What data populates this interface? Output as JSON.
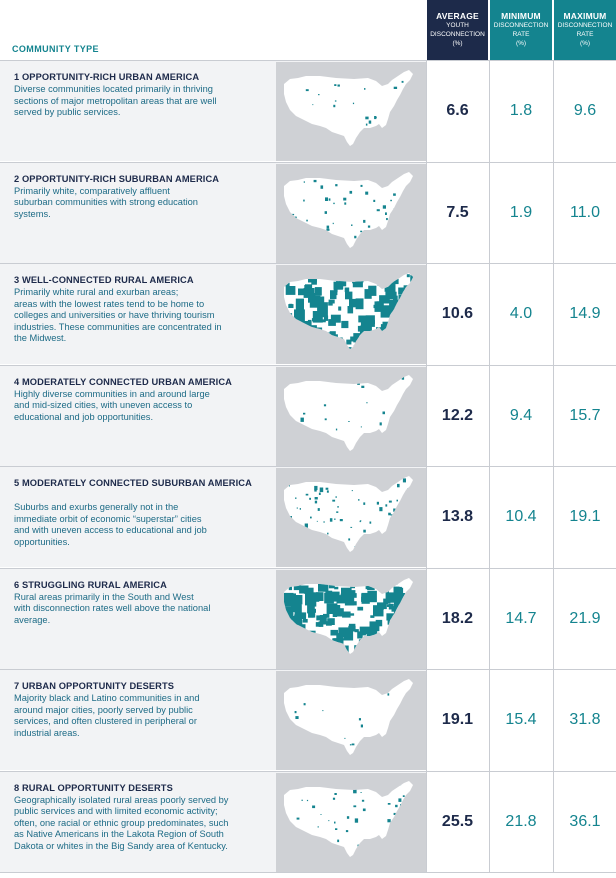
{
  "header": {
    "community_type": "COMMUNITY TYPE",
    "average": {
      "title": "AVERAGE",
      "sub1": "YOUTH",
      "sub2": "DISCONNECTION",
      "sub3": "(%)"
    },
    "minimum": {
      "title": "MINIMUM",
      "sub1": "DISCONNECTION",
      "sub2": "RATE",
      "sub3": "(%)"
    },
    "maximum": {
      "title": "MAXIMUM",
      "sub1": "DISCONNECTION",
      "sub2": "RATE",
      "sub3": "(%)"
    }
  },
  "colors": {
    "navy": "#1d2a4a",
    "teal": "#14848f",
    "map_bg": "#cfd1d5"
  },
  "rows": [
    {
      "title": "1 OPPORTUNITY-RICH URBAN AMERICA",
      "desc": [
        "Diverse communities located primarily in thriving",
        "sections of major metropolitan areas that are well",
        "served by public services."
      ],
      "average": "6.6",
      "minimum": "1.8",
      "maximum": "9.6",
      "map_coverage": 0.02
    },
    {
      "title": "2 OPPORTUNITY-RICH SUBURBAN AMERICA",
      "desc": [
        "Primarily white, comparatively affluent",
        "suburban communities with strong education",
        "systems."
      ],
      "average": "7.5",
      "minimum": "1.9",
      "maximum": "11.0",
      "map_coverage": 0.08
    },
    {
      "title": "3 WELL-CONNECTED RURAL AMERICA",
      "desc": [
        "Primarily white rural and exurban areas;",
        "areas with the lowest rates tend to be home to",
        "colleges and universities or have thriving tourism",
        "industries. These communities are concentrated in",
        "the Midwest."
      ],
      "average": "10.6",
      "minimum": "4.0",
      "maximum": "14.9",
      "map_coverage": 0.3
    },
    {
      "title": "4 MODERATELY CONNECTED URBAN AMERICA",
      "desc": [
        "Highly diverse communities in and around large",
        "and mid-sized cities, with uneven access to",
        "educational and job opportunities."
      ],
      "average": "12.2",
      "minimum": "9.4",
      "maximum": "15.7",
      "map_coverage": 0.03
    },
    {
      "title": "5 MODERATELY CONNECTED SUBURBAN AMERICA",
      "desc": [
        "Suburbs and exurbs generally not in the",
        "immediate orbit of economic “superstar” cities",
        "and with uneven access to educational and job",
        "opportunities."
      ],
      "average": "13.8",
      "minimum": "10.4",
      "maximum": "19.1",
      "map_coverage": 0.15
    },
    {
      "title": "6 STRUGGLING RURAL AMERICA",
      "desc": [
        "Rural areas primarily in the South and West",
        "with disconnection rates well above the national",
        "average."
      ],
      "average": "18.2",
      "minimum": "14.7",
      "maximum": "21.9",
      "map_coverage": 0.4
    },
    {
      "title": "7 URBAN OPPORTUNITY DESERTS",
      "desc": [
        "Majority black and Latino communities in and",
        "around major cities, poorly served by public",
        "services, and often clustered in peripheral or",
        "industrial areas."
      ],
      "average": "19.1",
      "minimum": "15.4",
      "maximum": "31.8",
      "map_coverage": 0.01
    },
    {
      "title": "8 RURAL OPPORTUNITY DESERTS",
      "desc": [
        "Geographically isolated rural areas poorly served by",
        "public services and with limited economic activity;",
        "often, one racial or ethnic group predominates, such",
        "as Native Americans in the Lakota Region of South",
        "Dakota or whites in the Big Sandy area of Kentucky."
      ],
      "average": "25.5",
      "minimum": "21.8",
      "maximum": "36.1",
      "map_coverage": 0.06
    }
  ]
}
